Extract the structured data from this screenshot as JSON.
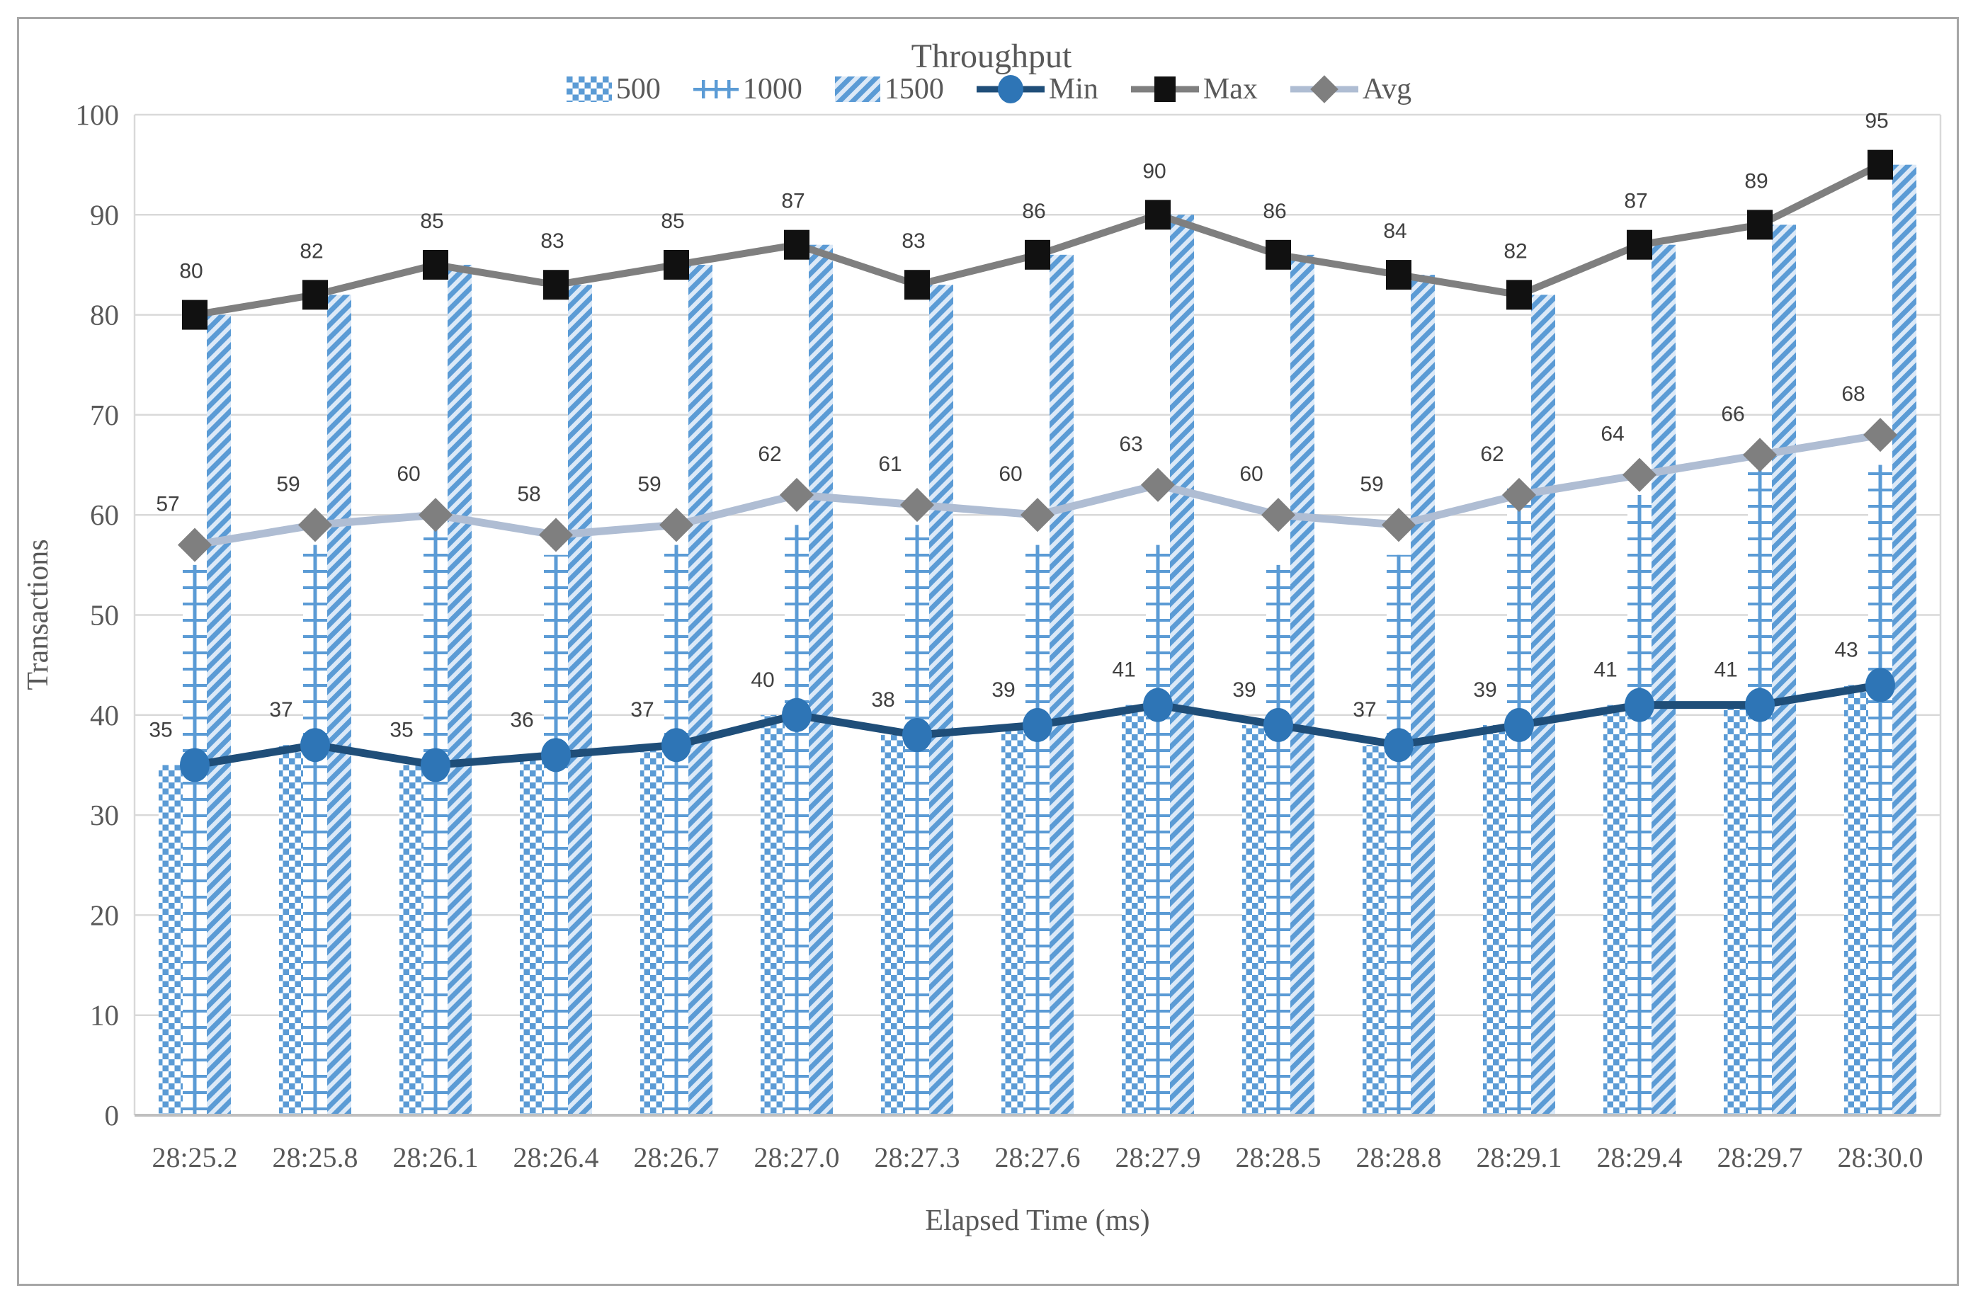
{
  "title": "Throughput",
  "axes": {
    "y_title": "Transactions",
    "x_title": "Elapsed Time (ms)",
    "y_ticks": [
      "0",
      "10",
      "20",
      "30",
      "40",
      "50",
      "60",
      "70",
      "80",
      "90",
      "100"
    ],
    "y_min": 0,
    "y_max": 100
  },
  "legend": [
    {
      "label": "500",
      "swatch": "pattern-checker"
    },
    {
      "label": "1000",
      "swatch": "pattern-ladder"
    },
    {
      "label": "1500",
      "swatch": "pattern-diagonal"
    },
    {
      "label": "Min",
      "swatch": "line-circle"
    },
    {
      "label": "Max",
      "swatch": "line-square"
    },
    {
      "label": "Avg",
      "swatch": "line-diamond"
    }
  ],
  "colors": {
    "bar_blue": "#5B9BD5",
    "bar_bg_light": "#DCE9F7",
    "min_line": "#1F4E79",
    "min_marker": "#2E75B6",
    "max_line": "#7F7F7F",
    "max_marker": "#111111",
    "avg_line": "#AFBDD3",
    "avg_marker": "#7F7F7F",
    "grid": "#D9D9D9",
    "axis_line": "#BFBFBF",
    "text": "#595959",
    "data_label": "#404040",
    "frame": "#A6A6A6"
  },
  "chart_data": {
    "type": "combo-bar-line",
    "title": "Throughput",
    "xlabel": "Elapsed Time (ms)",
    "ylabel": "Transactions",
    "ylim": [
      0,
      100
    ],
    "grid": true,
    "legend_position": "top",
    "categories": [
      "28:25.2",
      "28:25.8",
      "28:26.1",
      "28:26.4",
      "28:26.7",
      "28:27.0",
      "28:27.3",
      "28:27.6",
      "28:27.9",
      "28:28.5",
      "28:28.8",
      "28:29.1",
      "28:29.4",
      "28:29.7",
      "28:30.0"
    ],
    "series": [
      {
        "name": "500",
        "type": "bar",
        "pattern": "checker",
        "labeled": false,
        "values": [
          35,
          37,
          35,
          36,
          37,
          40,
          38,
          39,
          41,
          39,
          37,
          39,
          41,
          41,
          43
        ]
      },
      {
        "name": "1000",
        "type": "bar",
        "pattern": "ladder",
        "labeled": false,
        "values": [
          55,
          57,
          59,
          56,
          57,
          59,
          59,
          57,
          57,
          55,
          56,
          63,
          62,
          67,
          65
        ]
      },
      {
        "name": "1500",
        "type": "bar",
        "pattern": "diagonal",
        "labeled": false,
        "values": [
          80,
          82,
          85,
          83,
          85,
          87,
          83,
          86,
          90,
          86,
          84,
          82,
          87,
          89,
          95
        ]
      },
      {
        "name": "Min",
        "type": "line",
        "marker": "circle",
        "labeled": true,
        "values": [
          35,
          37,
          35,
          36,
          37,
          40,
          38,
          39,
          41,
          39,
          37,
          39,
          41,
          41,
          43
        ]
      },
      {
        "name": "Max",
        "type": "line",
        "marker": "square",
        "labeled": true,
        "values": [
          80,
          82,
          85,
          83,
          85,
          87,
          83,
          86,
          90,
          86,
          84,
          82,
          87,
          89,
          95
        ]
      },
      {
        "name": "Avg",
        "type": "line",
        "marker": "diamond",
        "labeled": true,
        "values": [
          57,
          59,
          60,
          58,
          59,
          62,
          61,
          60,
          63,
          60,
          59,
          62,
          64,
          66,
          68
        ]
      }
    ]
  }
}
